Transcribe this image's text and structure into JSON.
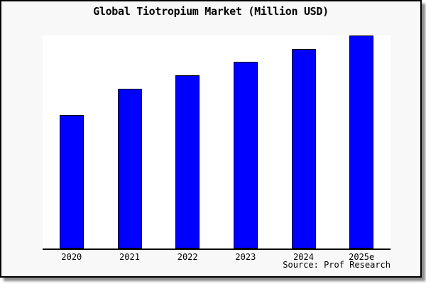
{
  "colors": {
    "canvas_bg": "#ffffff",
    "frame_bg": "#f8f8f8",
    "frame_border": "#000000",
    "plot_bg": "#ffffff",
    "axis": "#000000",
    "text": "#000000",
    "bar_fill": "#0000ff",
    "bar_edge": "#000000"
  },
  "chart_data": {
    "type": "bar",
    "title": "Global Tiotropium Market (Million USD)",
    "categories": [
      "2020",
      "2021",
      "2022",
      "2023",
      "2024",
      "2025e"
    ],
    "series": [
      {
        "name": "Global Tiotropium Market",
        "values_pct_of_max": [
          62.8,
          75.0,
          81.5,
          87.8,
          93.8,
          100
        ]
      }
    ],
    "value_axis_visible": false,
    "value_labels_visible": false,
    "grid": false,
    "legend": false,
    "xlabel": "",
    "ylabel": "",
    "note": "No value axis or data labels shown; values are relative bar heights as percent of the 2025e bar",
    "source_note": "Source: Prof Research"
  }
}
